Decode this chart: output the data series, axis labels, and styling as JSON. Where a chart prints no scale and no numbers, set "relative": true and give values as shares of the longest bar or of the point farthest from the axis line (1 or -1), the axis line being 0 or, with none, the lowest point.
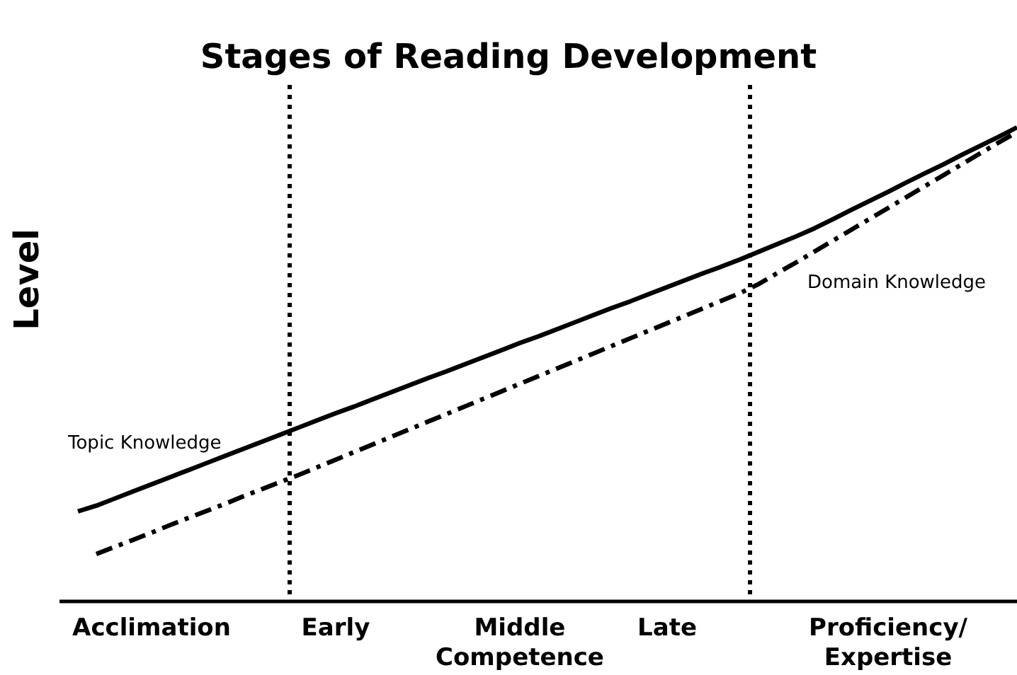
{
  "chart_data": {
    "type": "line",
    "title": "Stages of Reading Development",
    "ylabel": "Level",
    "relative": true,
    "categories": [
      null,
      null,
      null,
      null,
      null,
      "Acclimation",
      null,
      null,
      null,
      null,
      null,
      null,
      null,
      null,
      null,
      "Early",
      null,
      null,
      null,
      null,
      null,
      null,
      null,
      null,
      null,
      "Middle Competence",
      null,
      null,
      null,
      null,
      null,
      null,
      null,
      "Late",
      null,
      null,
      null,
      null,
      null,
      null,
      null,
      null,
      null,
      null,
      null,
      "Proficiency/Expertise",
      null,
      null,
      null,
      null,
      null,
      null,
      null
    ],
    "series": [
      {
        "name": "Topic Knowledge",
        "color": "#000000",
        "line_style": "solid",
        "values": [
          null,
          0.19,
          0.202,
          0.217,
          0.232,
          0.247,
          0.262,
          0.277,
          0.292,
          0.307,
          0.322,
          0.337,
          0.352,
          0.367,
          0.382,
          0.397,
          0.411,
          0.426,
          0.441,
          0.456,
          0.471,
          0.485,
          0.5,
          0.515,
          0.53,
          0.545,
          0.559,
          0.574,
          0.589,
          0.604,
          0.619,
          0.633,
          0.648,
          0.663,
          0.678,
          0.693,
          0.707,
          0.722,
          0.738,
          0.754,
          0.77,
          0.787,
          0.806,
          0.826,
          0.845,
          0.864,
          0.884,
          0.903,
          0.922,
          0.942,
          0.961,
          0.98,
          1
        ]
      },
      {
        "name": "Domain Knowledge",
        "color": "#000000",
        "line_style": "dashdot",
        "values": [
          null,
          null,
          0.1,
          0.115,
          0.13,
          0.145,
          0.161,
          0.176,
          0.191,
          0.206,
          0.222,
          0.237,
          0.252,
          0.267,
          0.283,
          0.299,
          0.315,
          0.331,
          0.347,
          0.363,
          0.379,
          0.395,
          0.411,
          0.427,
          0.443,
          0.459,
          0.475,
          0.491,
          0.507,
          0.523,
          0.539,
          0.555,
          0.571,
          0.587,
          0.603,
          0.619,
          0.635,
          0.651,
          0.67,
          0.693,
          0.715,
          0.738,
          0.761,
          0.784,
          0.807,
          0.83,
          0.853,
          0.876,
          0.899,
          0.922,
          0.945,
          0.968,
          0.99
        ]
      }
    ],
    "grid": false,
    "legend": false,
    "marker": "none",
    "tick_labels": "x"
  }
}
